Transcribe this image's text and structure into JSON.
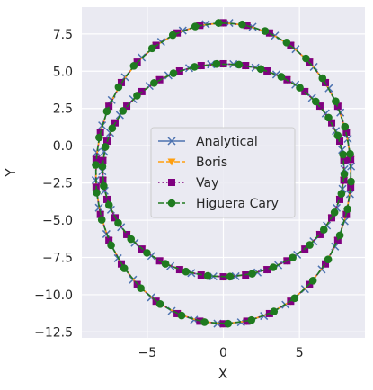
{
  "chart_data": {
    "type": "line",
    "title": "",
    "xlabel": "X",
    "ylabel": "Y",
    "xlim": [
      -9.3,
      9.3
    ],
    "ylim": [
      -12.9,
      9.3
    ],
    "xticks": [
      -5,
      0,
      5
    ],
    "yticks": [
      -12.5,
      -10.0,
      -7.5,
      -5.0,
      -2.5,
      0.0,
      2.5,
      5.0,
      7.5
    ],
    "xtick_labels": [
      "−5",
      "0",
      "5"
    ],
    "ytick_labels": [
      "−12.5",
      "−10.0",
      "−7.5",
      "−5.0",
      "−2.5",
      "0.0",
      "2.5",
      "5.0",
      "7.5"
    ],
    "grid": true,
    "legend_position": "center-right",
    "colors": {
      "background": "#eaeaf2",
      "grid": "#ffffff",
      "Analytical": "#4c72b0",
      "Boris": "#ff9f0f",
      "Vay": "#800080",
      "Higuera Cary": "#1f7a1f"
    },
    "orbit": {
      "outer": {
        "cx": 0.0,
        "cy": -1.85,
        "rx": 8.4,
        "ry": 10.1
      },
      "inner": {
        "cx": 0.0,
        "cy": -1.65,
        "rx": 7.95,
        "ry": 7.15
      },
      "outer_phases": {
        "Analytical": 15,
        "Boris": 0,
        "Vay": 0,
        "Higuera Cary": 4
      },
      "inner_phases": {
        "Analytical": 11,
        "Boris": 0,
        "Vay": 0,
        "Higuera Cary": 6
      },
      "points_per_loop": 34
    },
    "series": [
      {
        "name": "Analytical",
        "marker": "x",
        "linestyle": "solid"
      },
      {
        "name": "Boris",
        "marker": "triangle-down",
        "linestyle": "dashed"
      },
      {
        "name": "Vay",
        "marker": "square",
        "linestyle": "dotted"
      },
      {
        "name": "Higuera Cary",
        "marker": "circle",
        "linestyle": "dashed"
      }
    ]
  }
}
